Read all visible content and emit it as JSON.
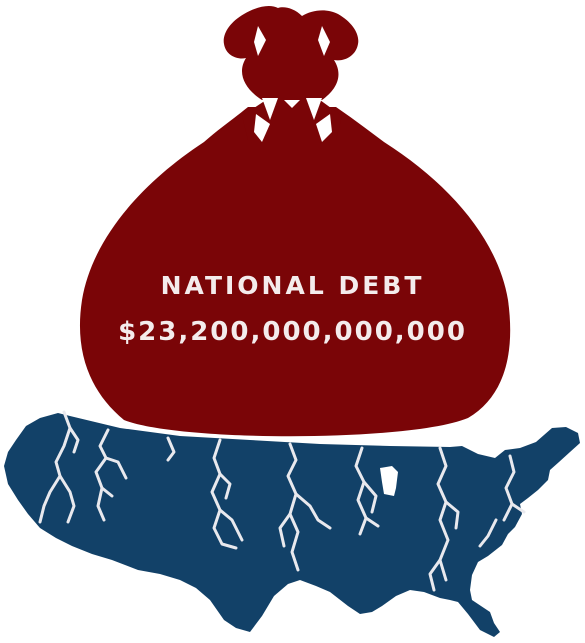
{
  "illustration": {
    "title": "NATIONAL DEBT",
    "amount": "$23,200,000,000,000",
    "icons": {
      "bag": "money-bag-icon",
      "map": "usa-map-icon",
      "cracks": "crack-lines-icon"
    },
    "colors": {
      "bag": "#7a0507",
      "bag_cinch": "#ffffff",
      "map": "#124168",
      "cracks": "#e9e9ee",
      "text": "#f4ecec",
      "background": "#ffffff"
    }
  }
}
